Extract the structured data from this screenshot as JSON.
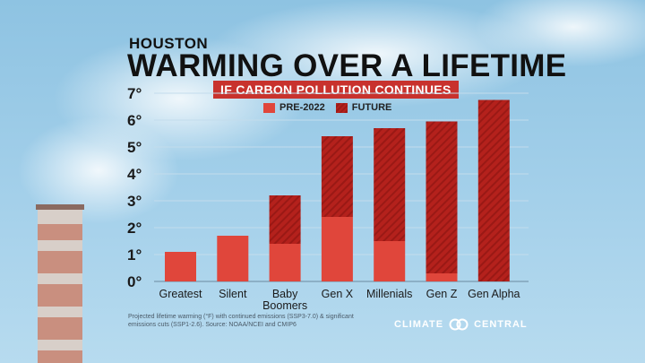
{
  "header": {
    "location": "HOUSTON",
    "title": "WARMING OVER A LIFETIME",
    "subtitle": "IF CARBON POLLUTION CONTINUES"
  },
  "legend": {
    "pre_label": "PRE-2022",
    "future_label": "FUTURE"
  },
  "footnote": {
    "text": "Projected lifetime warming (°F) with continued emissions (SSP3-7.0) & significant emissions cuts (SSP1-2.6). Source: NOAA/NCEI and CMIP6"
  },
  "brand": {
    "left": "CLIMATE",
    "right": "CENTRAL"
  },
  "colors": {
    "pre": "#e0463b",
    "future": "#b4211c",
    "subtitle_bg": "#c8322d"
  },
  "chart_data": {
    "type": "bar",
    "stacked": true,
    "categories": [
      "Greatest",
      "Silent",
      "Baby Boomers",
      "Gen X",
      "Millenials",
      "Gen Z",
      "Gen Alpha"
    ],
    "series": [
      {
        "name": "PRE-2022",
        "values": [
          1.1,
          1.7,
          1.4,
          2.4,
          1.5,
          0.3,
          0.0
        ]
      },
      {
        "name": "FUTURE",
        "values": [
          0.0,
          0.0,
          1.8,
          3.0,
          4.2,
          5.65,
          6.75
        ]
      }
    ],
    "totals": [
      1.1,
      1.7,
      3.2,
      5.4,
      5.7,
      5.95,
      6.75
    ],
    "yticks": [
      "0°",
      "1°",
      "2°",
      "3°",
      "4°",
      "5°",
      "6°",
      "7°"
    ],
    "ylim": [
      0,
      7
    ],
    "grid": true,
    "legend_position": "top"
  }
}
